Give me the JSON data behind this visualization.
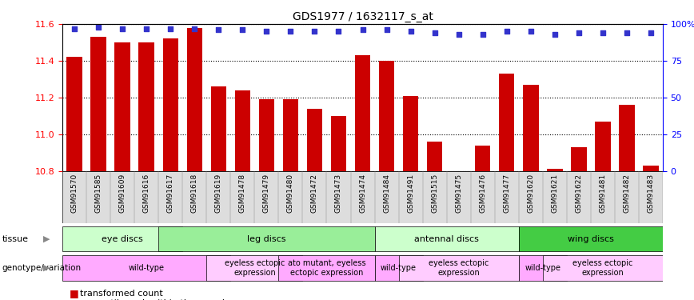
{
  "title": "GDS1977 / 1632117_s_at",
  "samples": [
    "GSM91570",
    "GSM91585",
    "GSM91609",
    "GSM91616",
    "GSM91617",
    "GSM91618",
    "GSM91619",
    "GSM91478",
    "GSM91479",
    "GSM91480",
    "GSM91472",
    "GSM91473",
    "GSM91474",
    "GSM91484",
    "GSM91491",
    "GSM91515",
    "GSM91475",
    "GSM91476",
    "GSM91477",
    "GSM91620",
    "GSM91621",
    "GSM91622",
    "GSM91481",
    "GSM91482",
    "GSM91483"
  ],
  "bar_values": [
    11.42,
    11.53,
    11.5,
    11.5,
    11.52,
    11.58,
    11.26,
    11.24,
    11.19,
    11.19,
    11.14,
    11.1,
    11.43,
    11.4,
    11.21,
    10.96,
    10.8,
    10.94,
    11.33,
    11.27,
    10.81,
    10.93,
    11.07,
    11.16,
    10.83
  ],
  "percentile_values": [
    97,
    98,
    97,
    97,
    97,
    97,
    96,
    96,
    95,
    95,
    95,
    95,
    96,
    96,
    95,
    94,
    93,
    93,
    95,
    95,
    93,
    94,
    94,
    94,
    94
  ],
  "ymin": 10.8,
  "ymax": 11.6,
  "yticks": [
    10.8,
    11.0,
    11.2,
    11.4,
    11.6
  ],
  "right_yticks": [
    0,
    25,
    50,
    75,
    100
  ],
  "right_ytick_labels": [
    "0",
    "25",
    "50",
    "75",
    "100%"
  ],
  "bar_color": "#cc0000",
  "dot_color": "#3333cc",
  "tissue_groups": [
    {
      "label": "eye discs",
      "start": 0,
      "end": 4,
      "color": "#ccffcc"
    },
    {
      "label": "leg discs",
      "start": 4,
      "end": 12,
      "color": "#99ee99"
    },
    {
      "label": "antennal discs",
      "start": 13,
      "end": 18,
      "color": "#ccffcc"
    },
    {
      "label": "wing discs",
      "start": 19,
      "end": 24,
      "color": "#44cc44"
    }
  ],
  "genotype_groups": [
    {
      "label": "wild-type",
      "start": 0,
      "end": 6,
      "color": "#ffaaff"
    },
    {
      "label": "eyeless ectopic\nexpression",
      "start": 6,
      "end": 9,
      "color": "#ffccff"
    },
    {
      "label": "ato mutant, eyeless\nectopic expression",
      "start": 9,
      "end": 12,
      "color": "#ffaaff"
    },
    {
      "label": "wild-type",
      "start": 13,
      "end": 14,
      "color": "#ffaaff"
    },
    {
      "label": "eyeless ectopic\nexpression",
      "start": 14,
      "end": 18,
      "color": "#ffccff"
    },
    {
      "label": "wild-type",
      "start": 19,
      "end": 20,
      "color": "#ffaaff"
    },
    {
      "label": "eyeless ectopic\nexpression",
      "start": 20,
      "end": 24,
      "color": "#ffccff"
    }
  ],
  "tissue_row_label": "tissue",
  "genotype_row_label": "genotype/variation",
  "label_color": "#888888",
  "tick_label_bg": "#dddddd"
}
